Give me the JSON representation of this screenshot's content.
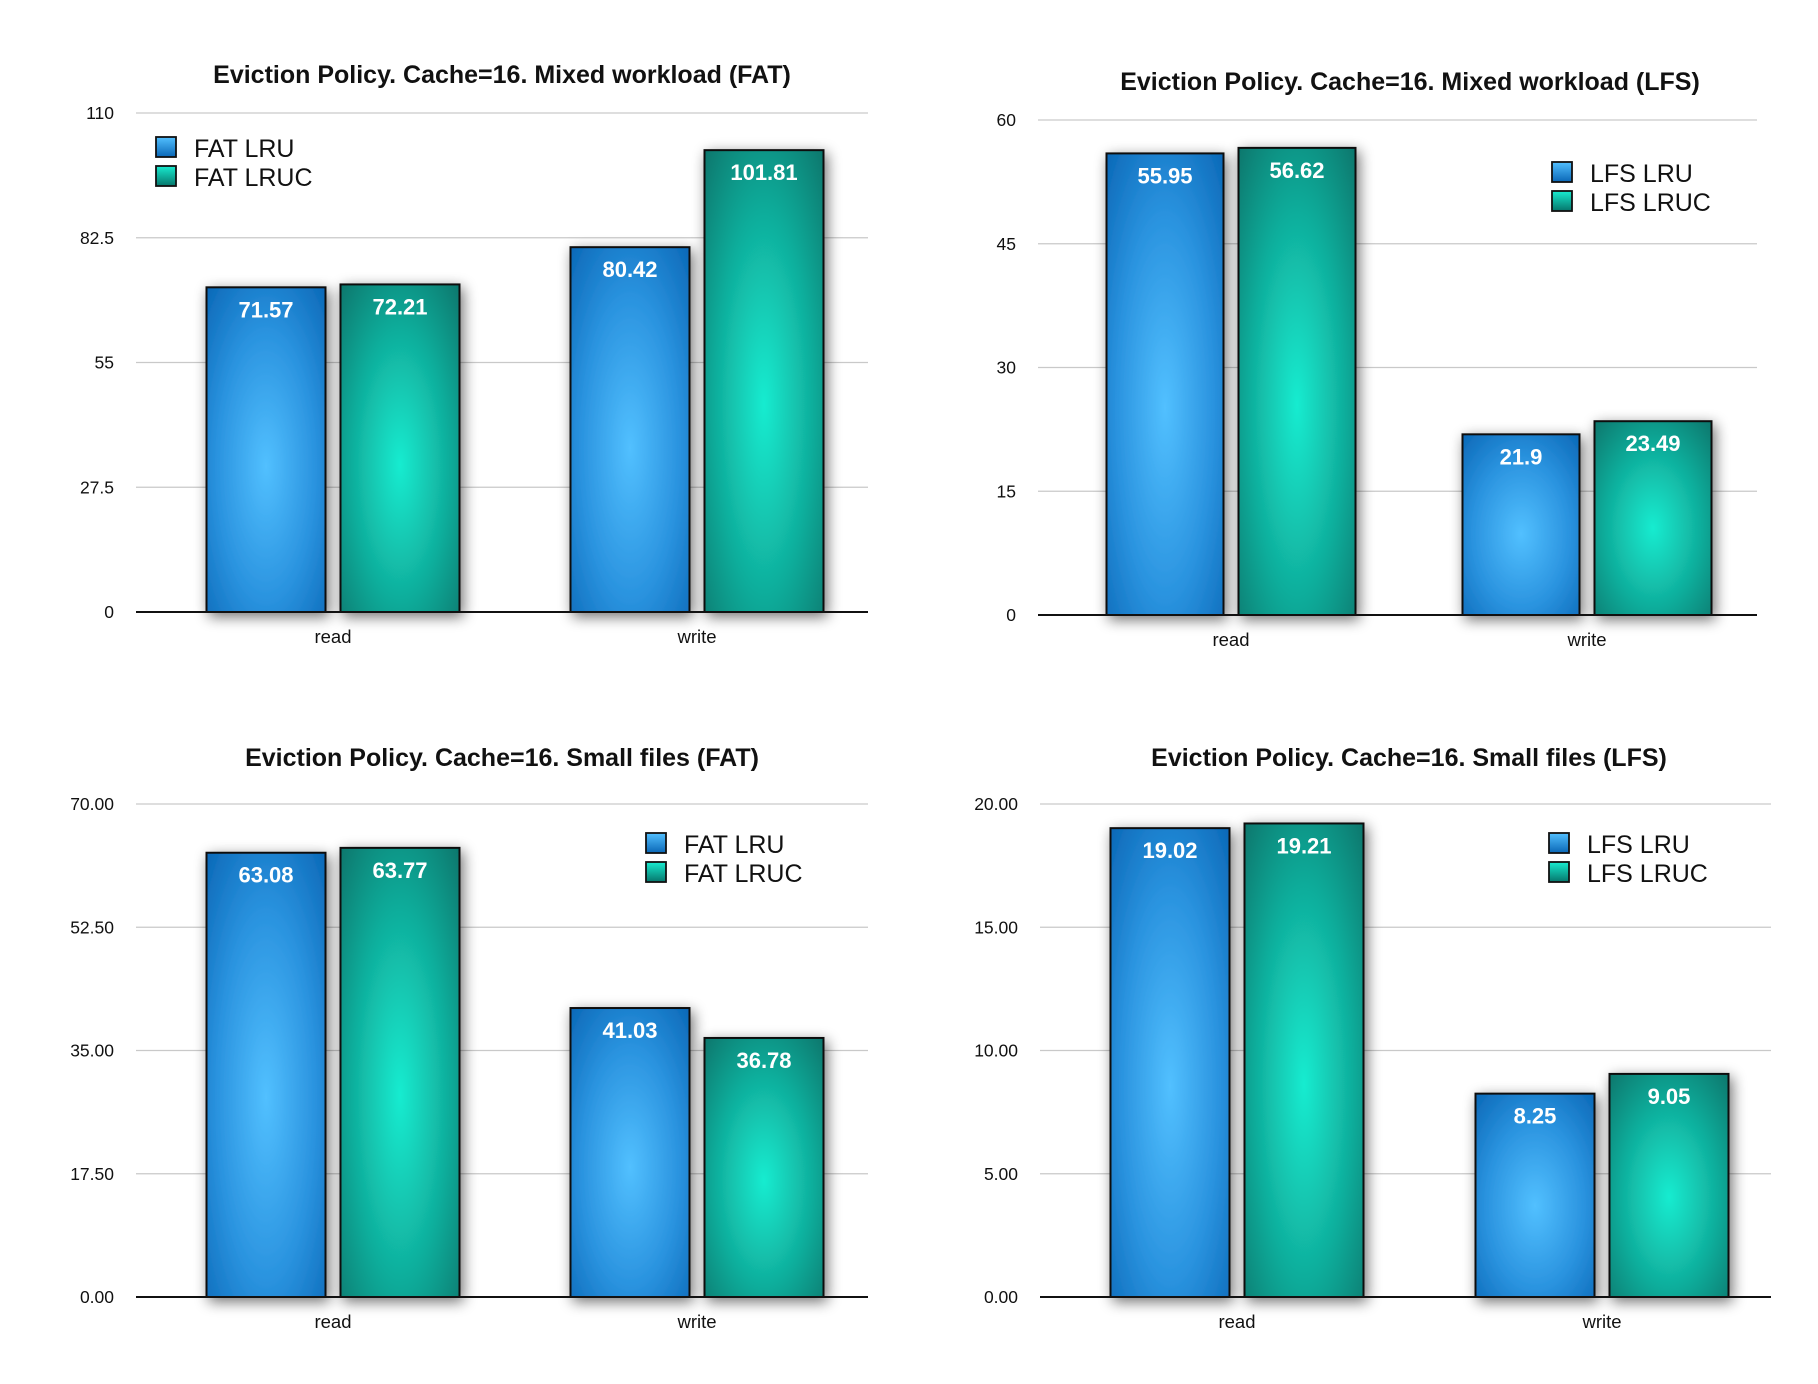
{
  "colors": {
    "LRU": {
      "light": "#52c0ff",
      "mid": "#2a93df",
      "dark": "#0a67b6"
    },
    "LRUC": {
      "light": "#18ecd0",
      "mid": "#10ad9b",
      "dark": "#06756b"
    }
  },
  "chart_data": [
    {
      "type": "bar",
      "title": "Eviction Policy. Cache=16. Mixed workload (FAT)",
      "categories": [
        "read",
        "write"
      ],
      "series": [
        {
          "name": "FAT LRU",
          "color": "LRU",
          "values": [
            71.57,
            80.42
          ]
        },
        {
          "name": "FAT LRUC",
          "color": "LRUC",
          "values": [
            72.21,
            101.81
          ]
        }
      ],
      "data_labels": [
        [
          "71.57",
          "80.42"
        ],
        [
          "72.21",
          "101.81"
        ]
      ],
      "ylim": [
        0,
        110
      ],
      "yticks": [
        0,
        27.5,
        55,
        82.5,
        110
      ],
      "ytick_labels": [
        "0",
        "27.5",
        "55",
        "82.5",
        "110"
      ],
      "xlabel": "",
      "ylabel": "",
      "grid": true,
      "legend": "top-left"
    },
    {
      "type": "bar",
      "title": "Eviction Policy. Cache=16. Mixed workload (LFS)",
      "categories": [
        "read",
        "write"
      ],
      "series": [
        {
          "name": "LFS LRU",
          "color": "LRU",
          "values": [
            55.95,
            21.9
          ]
        },
        {
          "name": "LFS LRUC",
          "color": "LRUC",
          "values": [
            56.62,
            23.49
          ]
        }
      ],
      "data_labels": [
        [
          "55.95",
          "21.9"
        ],
        [
          "56.62",
          "23.49"
        ]
      ],
      "ylim": [
        0,
        60
      ],
      "yticks": [
        0,
        15,
        30,
        45,
        60
      ],
      "ytick_labels": [
        "0",
        "15",
        "30",
        "45",
        "60"
      ],
      "xlabel": "",
      "ylabel": "",
      "grid": true,
      "legend": "top-right"
    },
    {
      "type": "bar",
      "title": "Eviction Policy. Cache=16. Small files (FAT)",
      "categories": [
        "read",
        "write"
      ],
      "series": [
        {
          "name": "FAT LRU",
          "color": "LRU",
          "values": [
            63.08,
            41.03
          ]
        },
        {
          "name": "FAT LRUC",
          "color": "LRUC",
          "values": [
            63.77,
            36.78
          ]
        }
      ],
      "data_labels": [
        [
          "63.08",
          "41.03"
        ],
        [
          "63.77",
          "36.78"
        ]
      ],
      "ylim": [
        0,
        70
      ],
      "yticks": [
        0,
        17.5,
        35,
        52.5,
        70
      ],
      "ytick_labels": [
        "0.00",
        "17.50",
        "35.00",
        "52.50",
        "70.00"
      ],
      "xlabel": "",
      "ylabel": "",
      "grid": true,
      "legend": "top-right"
    },
    {
      "type": "bar",
      "title": "Eviction Policy. Cache=16. Small files (LFS)",
      "categories": [
        "read",
        "write"
      ],
      "series": [
        {
          "name": "LFS LRU",
          "color": "LRU",
          "values": [
            19.02,
            8.25
          ]
        },
        {
          "name": "LFS LRUC",
          "color": "LRUC",
          "values": [
            19.21,
            9.05
          ]
        }
      ],
      "data_labels": [
        [
          "19.02",
          "8.25"
        ],
        [
          "19.21",
          "9.05"
        ]
      ],
      "ylim": [
        0,
        20
      ],
      "yticks": [
        0,
        5,
        10,
        15,
        20
      ],
      "ytick_labels": [
        "0.00",
        "5.00",
        "10.00",
        "15.00",
        "20.00"
      ],
      "xlabel": "",
      "ylabel": "",
      "grid": true,
      "legend": "top-right"
    }
  ]
}
